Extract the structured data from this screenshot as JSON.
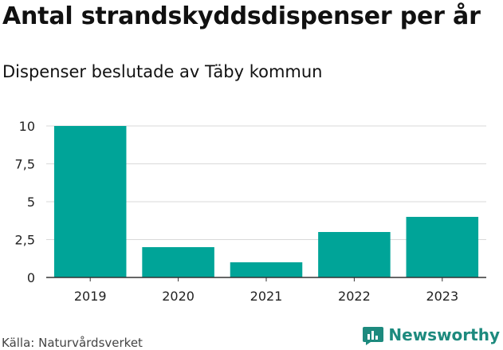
{
  "header": {
    "title": "Antal strandskyddsdispenser per år",
    "subtitle": "Dispenser beslutade av Täby kommun"
  },
  "footer": {
    "source": "Källa: Naturvårdsverket",
    "brand": "Newsworthy"
  },
  "colors": {
    "bar": "#00a498",
    "grid": "#d9d9d9",
    "axis": "#333333",
    "brand": "#1d8a7e"
  },
  "chart_data": {
    "type": "bar",
    "title": "Antal strandskyddsdispenser per år",
    "subtitle": "Dispenser beslutade av Täby kommun",
    "xlabel": "",
    "ylabel": "",
    "categories": [
      "2019",
      "2020",
      "2021",
      "2022",
      "2023"
    ],
    "values": [
      10,
      2,
      1,
      3,
      4
    ],
    "ylim": [
      0,
      10
    ],
    "yticks": [
      0,
      2.5,
      5,
      7.5,
      10
    ],
    "ytick_labels": [
      "0",
      "2,5",
      "5",
      "7,5",
      "10"
    ],
    "grid": true,
    "legend": "none"
  }
}
